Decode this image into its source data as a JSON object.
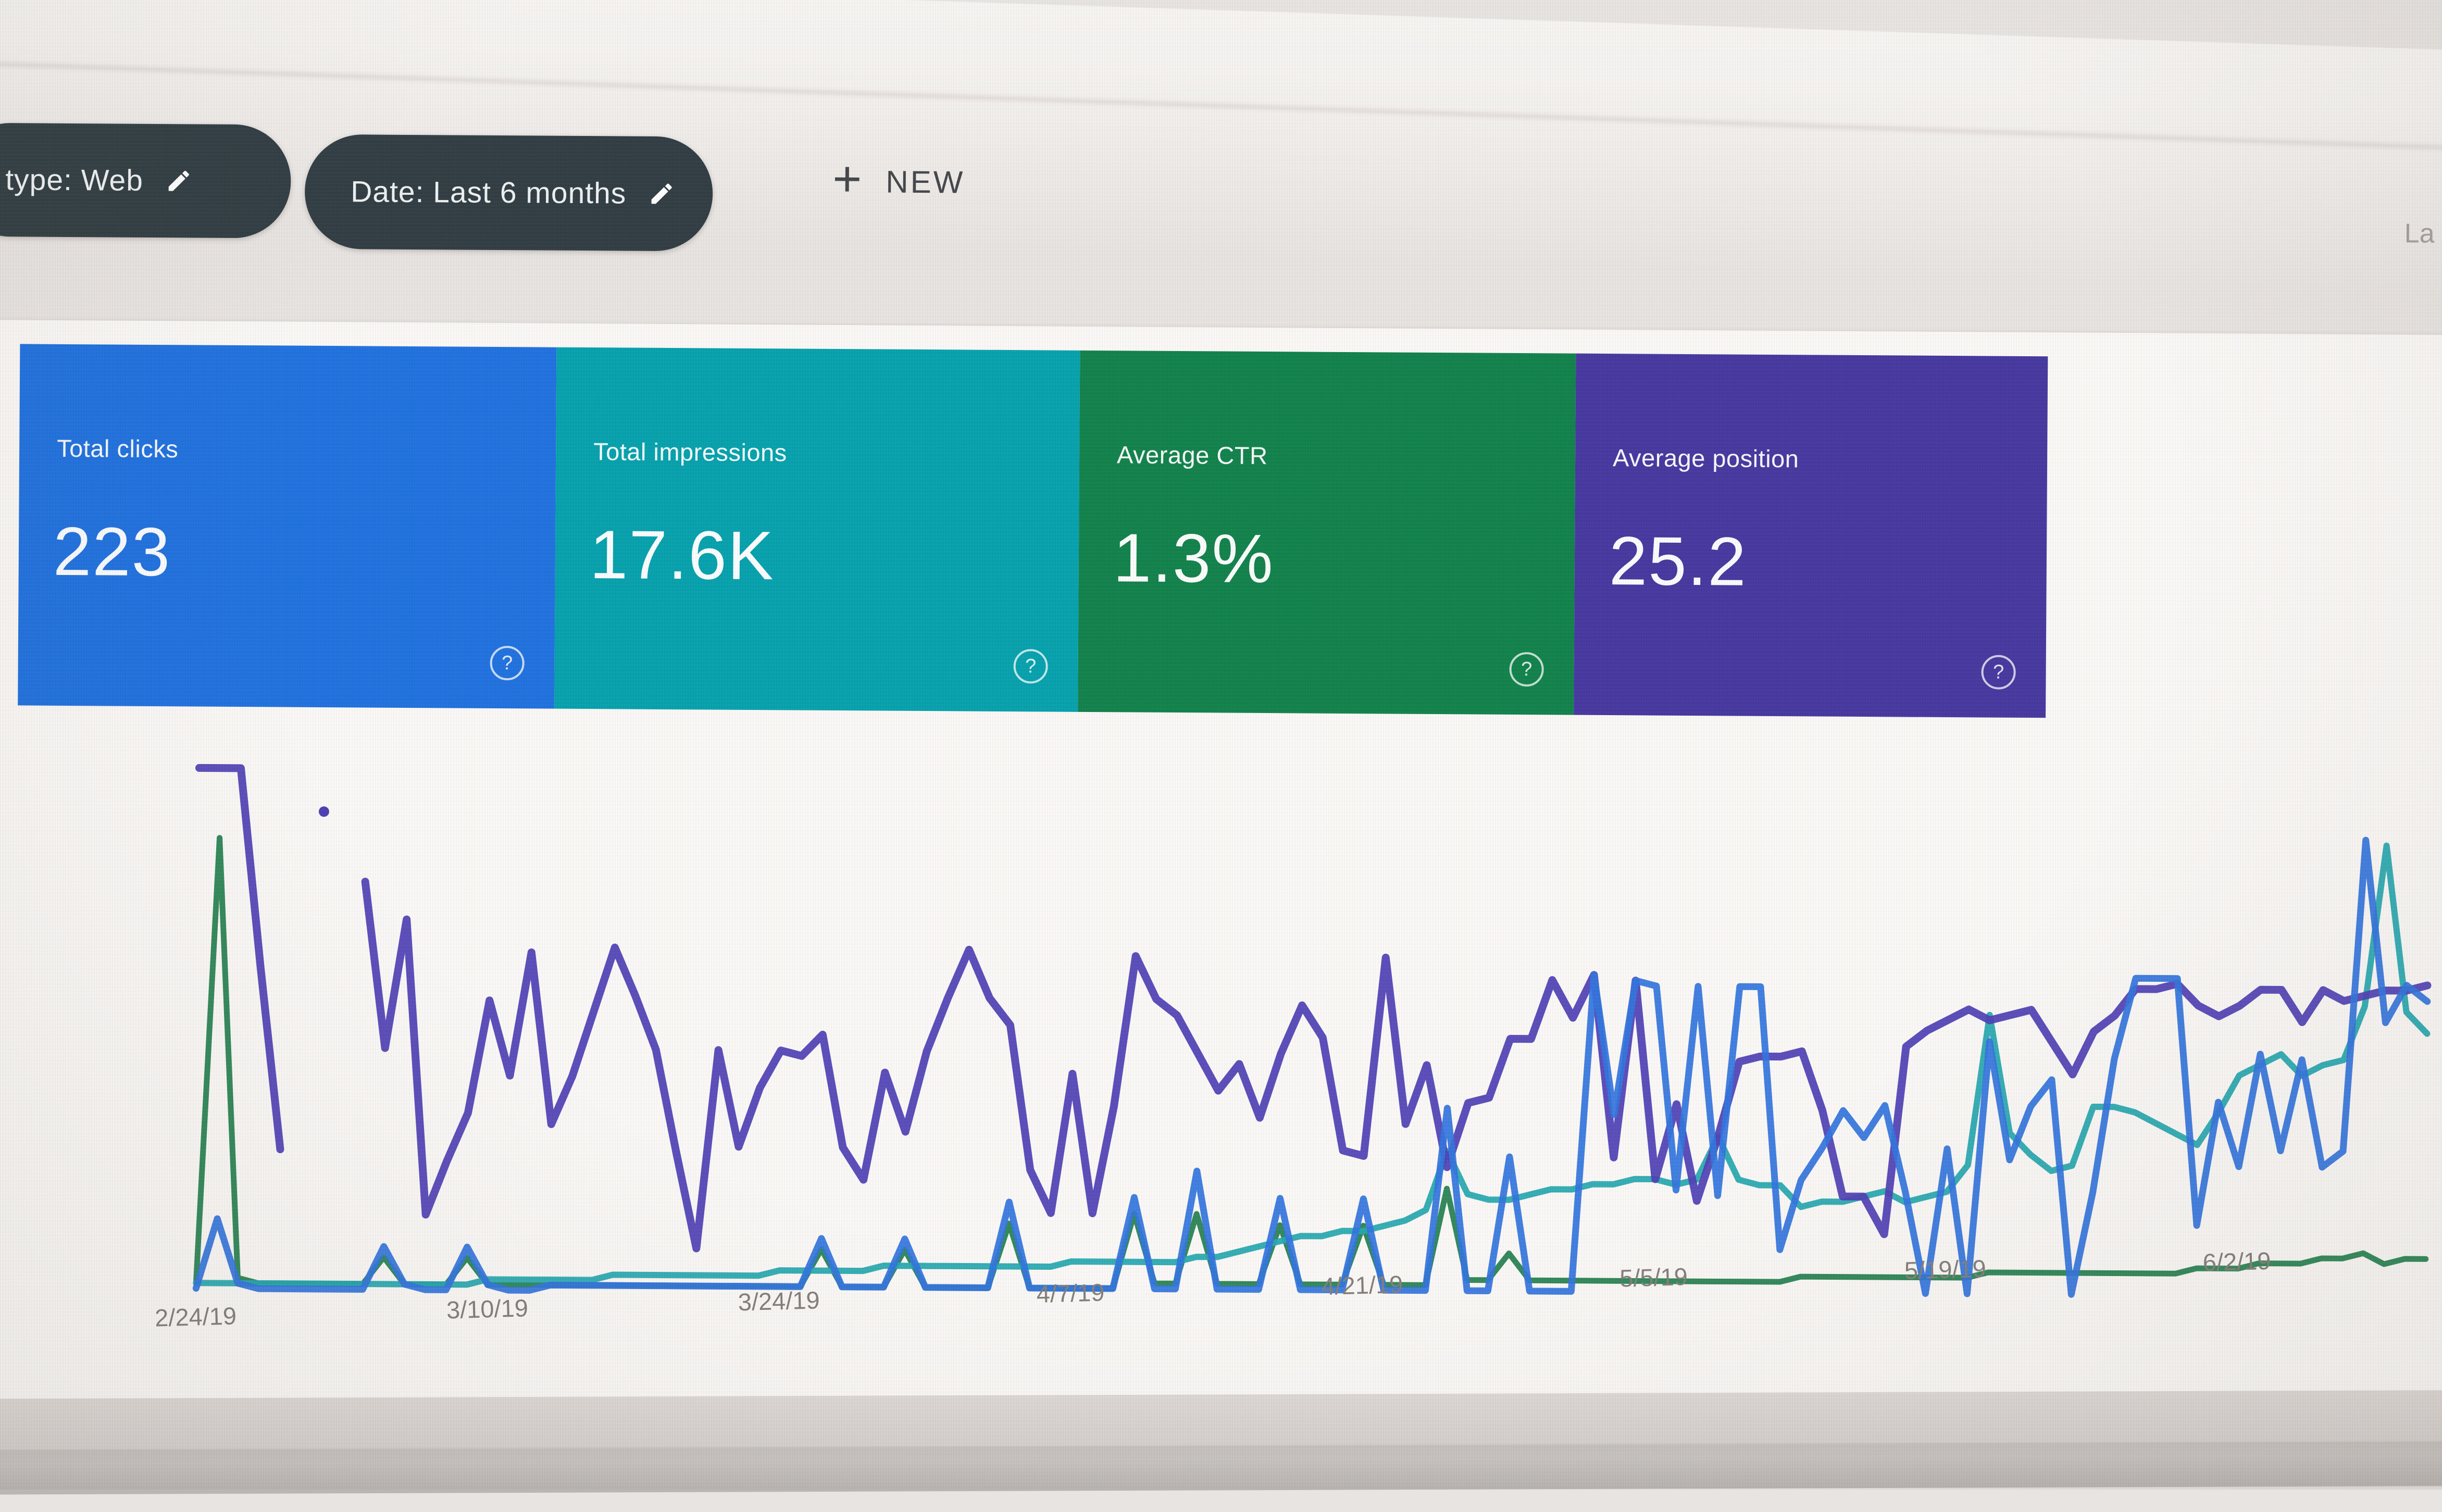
{
  "toolbar": {
    "filter_chips": [
      {
        "label": "type: Web",
        "icon": "pencil-icon"
      },
      {
        "label": "Date: Last 6 months",
        "icon": "pencil-icon"
      }
    ],
    "new_button": {
      "plus": "+",
      "label": "NEW"
    },
    "right_text_partial": "La"
  },
  "metric_cards": [
    {
      "label": "Total clicks",
      "value": "223",
      "color": "#1c6fdf",
      "help_icon": "?"
    },
    {
      "label": "Total impressions",
      "value": "17.6K",
      "color": "#01a0ac",
      "help_icon": "?"
    },
    {
      "label": "Average CTR",
      "value": "1.3%",
      "color": "#0d8049",
      "help_icon": "?"
    },
    {
      "label": "Average position",
      "value": "25.2",
      "color": "#43349e",
      "help_icon": "?"
    }
  ],
  "chart_data": {
    "type": "line",
    "title": "",
    "xlabel": "",
    "ylabel": "",
    "grid": false,
    "legend_position": "none",
    "x_unit": "day index from 2/24/19 (daily points)",
    "y_unit": "relative scale 0-100 (no y axis shown)",
    "x_tick_labels": [
      "2/24/19",
      "3/10/19",
      "3/24/19",
      "4/7/19",
      "4/21/19",
      "5/5/19",
      "5/19/19",
      "6/2/19"
    ],
    "x_tick_days": [
      0,
      14,
      28,
      42,
      56,
      70,
      84,
      98
    ],
    "series": [
      {
        "name": "Position",
        "metric": "Average position",
        "color": "#4b3cb4",
        "values": [
          97,
          97,
          97,
          60,
          26,
          null,
          89,
          null,
          76,
          45,
          69,
          14,
          24,
          33,
          54,
          40,
          63,
          31,
          40,
          52,
          64,
          55,
          45,
          26,
          8,
          45,
          27,
          38,
          45,
          44,
          48,
          27,
          21,
          41,
          30,
          45,
          55,
          64,
          55,
          50,
          23,
          15,
          41,
          15,
          35,
          63,
          55,
          52,
          45,
          38,
          43,
          33,
          45,
          54,
          48,
          27,
          26,
          63,
          32,
          43,
          24,
          36,
          37,
          48,
          48,
          59,
          52,
          60,
          26,
          59,
          22,
          36,
          18,
          30,
          44,
          45,
          45,
          46,
          35,
          19,
          19,
          12,
          47,
          50,
          52,
          54,
          52,
          53,
          54,
          48,
          42,
          50,
          53,
          58,
          58,
          59,
          55,
          53,
          55,
          58,
          58,
          52,
          58,
          56,
          57,
          58,
          58,
          59
        ]
      },
      {
        "name": "Clicks",
        "metric": "Total clicks",
        "color": "#2e72de",
        "values": [
          0,
          13,
          1,
          0,
          0,
          0,
          0,
          0,
          0,
          8,
          1,
          0,
          0,
          8,
          1,
          0,
          0,
          1,
          1,
          1,
          1,
          1,
          1,
          1,
          1,
          1,
          1,
          1,
          1,
          1,
          10,
          1,
          1,
          1,
          10,
          1,
          1,
          1,
          1,
          17,
          1,
          1,
          1,
          1,
          1,
          18,
          1,
          1,
          23,
          1,
          1,
          1,
          18,
          1,
          1,
          1,
          18,
          1,
          1,
          1,
          35,
          1,
          1,
          26,
          1,
          1,
          1,
          60,
          34,
          59,
          58,
          20,
          58,
          19,
          58,
          58,
          9,
          22,
          28,
          35,
          30,
          36,
          20,
          1,
          28,
          1,
          48,
          26,
          36,
          41,
          1,
          20,
          45,
          60,
          60,
          60,
          14,
          37,
          25,
          46,
          28,
          45,
          25,
          28,
          86,
          52,
          59,
          56
        ]
      },
      {
        "name": "Impressions",
        "metric": "Total impressions",
        "color": "#21a6ae",
        "values": [
          1,
          1,
          1,
          1,
          1,
          1,
          1,
          1,
          1,
          1,
          1,
          1,
          1,
          1,
          2,
          2,
          2,
          2,
          2,
          2,
          3,
          3,
          3,
          3,
          3,
          3,
          3,
          3,
          4,
          4,
          4,
          4,
          4,
          5,
          5,
          5,
          5,
          5,
          5,
          5,
          5,
          5,
          6,
          6,
          6,
          6,
          6,
          6,
          7,
          7,
          8,
          9,
          10,
          11,
          11,
          12,
          12,
          13,
          14,
          16,
          27,
          19,
          18,
          18,
          19,
          20,
          20,
          21,
          21,
          22,
          22,
          21,
          22,
          30,
          22,
          21,
          21,
          17,
          18,
          18,
          19,
          20,
          18,
          19,
          20,
          25,
          53,
          31,
          27,
          24,
          25,
          36,
          36,
          35,
          33,
          31,
          29,
          35,
          42,
          44,
          46,
          42,
          44,
          45,
          55,
          85,
          54,
          50
        ]
      },
      {
        "name": "CTR",
        "metric": "Average CTR",
        "color": "#1f7e4b",
        "values": [
          1,
          84,
          2,
          1,
          1,
          1,
          1,
          1,
          1,
          6,
          1,
          1,
          1,
          6,
          1,
          1,
          1,
          1,
          1,
          1,
          1,
          1,
          1,
          1,
          1,
          1,
          1,
          1,
          1,
          1,
          8,
          1,
          1,
          1,
          8,
          1,
          1,
          1,
          1,
          13,
          1,
          1,
          1,
          1,
          1,
          15,
          2,
          2,
          15,
          2,
          2,
          2,
          13,
          2,
          2,
          2,
          13,
          2,
          2,
          2,
          20,
          3,
          3,
          8,
          3,
          3,
          3,
          3,
          3,
          3,
          3,
          3,
          3,
          3,
          3,
          3,
          3,
          4,
          4,
          4,
          4,
          4,
          4,
          4,
          4,
          4,
          5,
          5,
          5,
          5,
          5,
          5,
          5,
          5,
          5,
          5,
          6,
          6,
          6,
          7,
          7,
          7,
          8,
          8,
          9,
          7,
          8,
          8
        ]
      }
    ]
  }
}
